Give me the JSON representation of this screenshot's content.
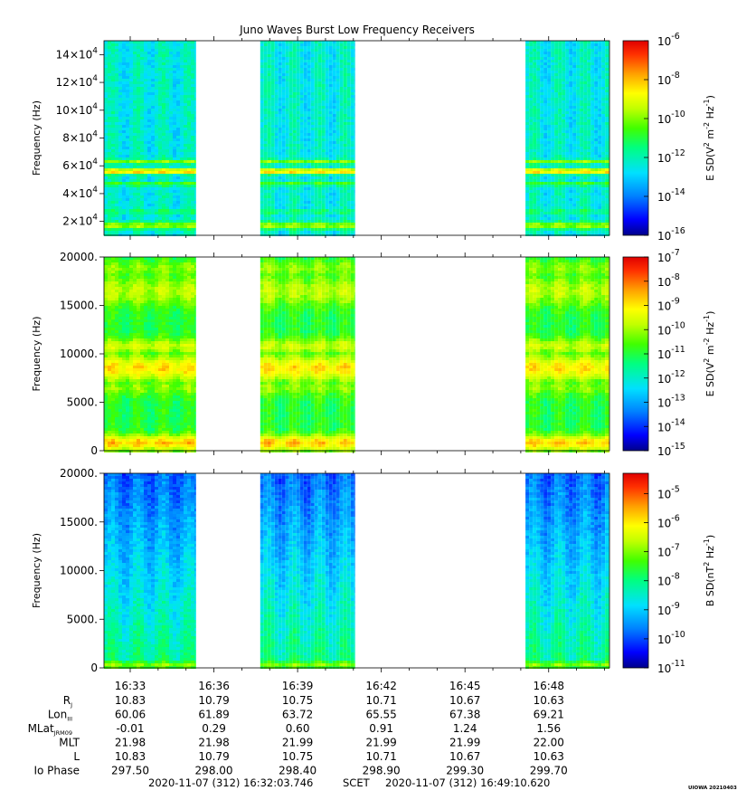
{
  "title": "Juno Waves Burst Low Frequency Receivers",
  "stamp": "UIOWA 20210403",
  "x_axis": {
    "tick_labels": [
      "16:33",
      "16:36",
      "16:39",
      "16:42",
      "16:45",
      "16:48"
    ],
    "range_minutes": [
      32.06,
      50.18
    ],
    "data_intervals_minutes": [
      [
        32.06,
        35.36
      ],
      [
        37.66,
        41.06
      ],
      [
        47.17,
        50.18
      ]
    ]
  },
  "ephemeris": {
    "rows": [
      {
        "label": "R",
        "sub": "J",
        "values": [
          "10.83",
          "10.79",
          "10.75",
          "10.71",
          "10.67",
          "10.63"
        ]
      },
      {
        "label": "Lon",
        "sub": "III",
        "values": [
          "60.06",
          "61.89",
          "63.72",
          "65.55",
          "67.38",
          "69.21"
        ]
      },
      {
        "label": "MLat",
        "sub": "JRM09",
        "values": [
          "-0.01",
          "0.29",
          "0.60",
          "0.91",
          "1.24",
          "1.56"
        ]
      },
      {
        "label": "MLT",
        "sub": "",
        "values": [
          "21.98",
          "21.98",
          "21.99",
          "21.99",
          "21.99",
          "22.00"
        ]
      },
      {
        "label": "L",
        "sub": "",
        "values": [
          "10.83",
          "10.79",
          "10.75",
          "10.71",
          "10.67",
          "10.63"
        ]
      },
      {
        "label": "Io Phase",
        "sub": "",
        "values": [
          "297.50",
          "298.00",
          "298.40",
          "298.90",
          "299.30",
          "299.70"
        ]
      }
    ]
  },
  "footer": {
    "start": "2020-11-07 (312) 16:32:03.746",
    "scet": "SCET",
    "end": "2020-11-07 (312) 16:49:10.620"
  },
  "colors": {
    "scale": [
      "#00008b",
      "#0000ff",
      "#0080ff",
      "#00e0ff",
      "#00ff80",
      "#40ff00",
      "#c0ff00",
      "#ffff00",
      "#ffa000",
      "#ff3000",
      "#e00000"
    ]
  },
  "chart_data": [
    {
      "type": "heatmap",
      "title": "Juno Waves Burst Low Frequency Receivers",
      "ylabel": "Frequency (Hz)",
      "ylim": [
        10000,
        150000
      ],
      "y_ticks": [
        {
          "base": "2×10",
          "exp": "4"
        },
        {
          "base": "4×10",
          "exp": "4"
        },
        {
          "base": "6×10",
          "exp": "4"
        },
        {
          "base": "8×10",
          "exp": "4"
        },
        {
          "base": "10×10",
          "exp": "4"
        },
        {
          "base": "12×10",
          "exp": "4"
        },
        {
          "base": "14×10",
          "exp": "4"
        }
      ],
      "y_tick_values": [
        20000,
        40000,
        60000,
        80000,
        100000,
        120000,
        140000
      ],
      "colorbar": {
        "label_parts": [
          "E SD(V",
          "2",
          " m",
          "-2",
          " Hz",
          "-1",
          ")"
        ],
        "ticks": [
          {
            "base": "10",
            "exp": "-6"
          },
          {
            "base": "10",
            "exp": "-8"
          },
          {
            "base": "10",
            "exp": "-10"
          },
          {
            "base": "10",
            "exp": "-12"
          },
          {
            "base": "10",
            "exp": "-14"
          },
          {
            "base": "10",
            "exp": "-16"
          }
        ],
        "tick_values": [
          -6,
          -8,
          -10,
          -12,
          -14,
          -16
        ],
        "range_log10": [
          -16,
          -6
        ]
      },
      "bg_level": 0.33,
      "bands": [
        {
          "f": 17000,
          "w": 2500,
          "level": 0.58
        },
        {
          "f": 27000,
          "w": 1500,
          "level": 0.42
        },
        {
          "f": 47000,
          "w": 1500,
          "level": 0.48
        },
        {
          "f": 56000,
          "w": 1800,
          "level": 0.78
        },
        {
          "f": 63000,
          "w": 1500,
          "level": 0.55
        }
      ]
    },
    {
      "type": "heatmap",
      "ylabel": "Frequency (Hz)",
      "ylim": [
        0,
        20000
      ],
      "y_ticks": [
        {
          "base": "0",
          "exp": ""
        },
        {
          "base": "5000.",
          "exp": ""
        },
        {
          "base": "10000.",
          "exp": ""
        },
        {
          "base": "15000.",
          "exp": ""
        },
        {
          "base": "20000.",
          "exp": ""
        }
      ],
      "y_tick_values": [
        0,
        5000,
        10000,
        15000,
        20000
      ],
      "colorbar": {
        "label_parts": [
          "E SD(V",
          "2",
          " m",
          "-2",
          " Hz",
          "-1",
          ")"
        ],
        "ticks": [
          {
            "base": "10",
            "exp": "-7"
          },
          {
            "base": "10",
            "exp": "-8"
          },
          {
            "base": "10",
            "exp": "-9"
          },
          {
            "base": "10",
            "exp": "-10"
          },
          {
            "base": "10",
            "exp": "-11"
          },
          {
            "base": "10",
            "exp": "-12"
          },
          {
            "base": "10",
            "exp": "-13"
          },
          {
            "base": "10",
            "exp": "-14"
          },
          {
            "base": "10",
            "exp": "-15"
          }
        ],
        "tick_values": [
          -7,
          -8,
          -9,
          -10,
          -11,
          -12,
          -13,
          -14,
          -15
        ],
        "range_log10": [
          -15,
          -7
        ]
      },
      "bg_level": 0.45,
      "bands": [
        {
          "f": 800,
          "w": 800,
          "level": 0.75
        },
        {
          "f": 6500,
          "w": 800,
          "level": 0.55
        },
        {
          "f": 8500,
          "w": 1300,
          "level": 0.72
        },
        {
          "f": 10800,
          "w": 800,
          "level": 0.62
        },
        {
          "f": 16500,
          "w": 1500,
          "level": 0.6
        },
        {
          "f": 18800,
          "w": 800,
          "level": 0.55
        }
      ]
    },
    {
      "type": "heatmap",
      "ylabel": "Frequency (Hz)",
      "ylim": [
        0,
        20000
      ],
      "y_ticks": [
        {
          "base": "0",
          "exp": ""
        },
        {
          "base": "5000.",
          "exp": ""
        },
        {
          "base": "10000.",
          "exp": ""
        },
        {
          "base": "15000.",
          "exp": ""
        },
        {
          "base": "20000.",
          "exp": ""
        }
      ],
      "y_tick_values": [
        0,
        5000,
        10000,
        15000,
        20000
      ],
      "colorbar": {
        "label_parts": [
          "B SD(nT",
          "2",
          " Hz",
          "-1",
          ")"
        ],
        "ticks": [
          {
            "base": "10",
            "exp": "-5"
          },
          {
            "base": "10",
            "exp": "-6"
          },
          {
            "base": "10",
            "exp": "-7"
          },
          {
            "base": "10",
            "exp": "-8"
          },
          {
            "base": "10",
            "exp": "-9"
          },
          {
            "base": "10",
            "exp": "-10"
          },
          {
            "base": "10",
            "exp": "-11"
          }
        ],
        "tick_values": [
          -5,
          -6,
          -7,
          -8,
          -9,
          -10,
          -11
        ],
        "range_log10": [
          -11,
          -4.3
        ]
      },
      "bg_level": 0.18,
      "bands": [
        {
          "f": 300,
          "w": 600,
          "level": 0.55
        }
      ]
    }
  ]
}
